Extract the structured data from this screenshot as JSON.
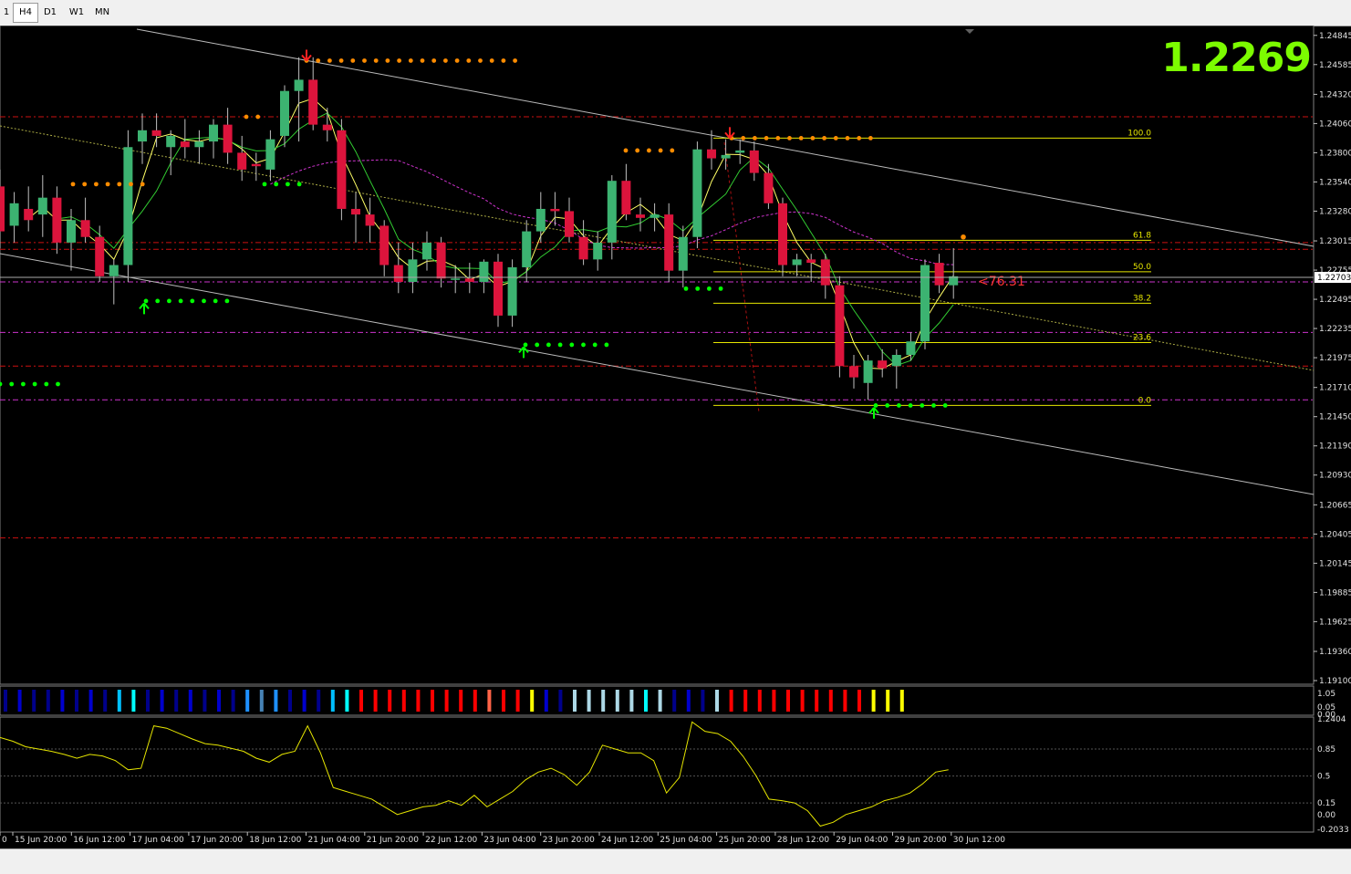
{
  "toolbar": {
    "timeframes": [
      {
        "label": "1",
        "active": false
      },
      {
        "label": "H4",
        "active": true
      },
      {
        "label": "D1",
        "active": false
      },
      {
        "label": "W1",
        "active": false
      },
      {
        "label": "MN",
        "active": false
      }
    ]
  },
  "current_price": "1.2269",
  "price_tag": "1.22703",
  "distance_label": "<76.31",
  "fib_levels": [
    "100.0",
    "61.8",
    "50.0",
    "38.2",
    "23.6",
    "0.0"
  ],
  "colors": {
    "bull": "#3cb371",
    "bear": "#dc143c",
    "ma_fast": "#ffff66",
    "ma_slow": "#32cd32",
    "ma_magenta": "#cc33cc",
    "resistance": "#ff3333",
    "fib": "#e6e600",
    "big_price": "#7cfc00"
  },
  "chart_data": [
    {
      "type": "candlestick",
      "symbol_timeframe": "H4",
      "y_axis_ticks": [
        "1.24845",
        "1.24585",
        "1.24320",
        "1.24060",
        "1.23800",
        "1.23540",
        "1.23280",
        "1.23015",
        "1.22755",
        "1.22495",
        "1.22235",
        "1.21975",
        "1.21710",
        "1.21450",
        "1.21190",
        "1.20930",
        "1.20665",
        "1.20405",
        "1.20145",
        "1.19885",
        "1.19625",
        "1.19360",
        "1.19100"
      ],
      "ylim": [
        1.191,
        1.249
      ],
      "x_axis_ticks": [
        "0",
        "15 Jun 20:00",
        "16 Jun 12:00",
        "17 Jun 04:00",
        "17 Jun 20:00",
        "18 Jun 12:00",
        "21 Jun 04:00",
        "21 Jun 20:00",
        "22 Jun 12:00",
        "23 Jun 04:00",
        "23 Jun 20:00",
        "24 Jun 12:00",
        "25 Jun 04:00",
        "25 Jun 20:00",
        "28 Jun 12:00",
        "29 Jun 04:00",
        "29 Jun 20:00",
        "30 Jun 12:00"
      ],
      "horizontal_levels": [
        {
          "price": 1.2412,
          "style": "red-dashed"
        },
        {
          "price": 1.23,
          "style": "red-dashed"
        },
        {
          "price": 1.2294,
          "style": "red-dashed"
        },
        {
          "price": 1.2265,
          "style": "magenta-dashed"
        },
        {
          "price": 1.222,
          "style": "magenta-dashed"
        },
        {
          "price": 1.219,
          "style": "red-dashed"
        },
        {
          "price": 1.216,
          "style": "magenta-dashed"
        },
        {
          "price": 1.2037,
          "style": "red-dashed"
        }
      ],
      "fibonacci": [
        {
          "level": "100.0",
          "price": 1.2393
        },
        {
          "level": "61.8",
          "price": 1.2302
        },
        {
          "level": "50.0",
          "price": 1.2274
        },
        {
          "level": "38.2",
          "price": 1.2246
        },
        {
          "level": "23.6",
          "price": 1.2211
        },
        {
          "level": "0.0",
          "price": 1.2155
        }
      ],
      "candles": [
        [
          1.235,
          1.2365,
          1.2295,
          1.231
        ],
        [
          1.2315,
          1.2345,
          1.23,
          1.2335
        ],
        [
          1.233,
          1.235,
          1.231,
          1.232
        ],
        [
          1.2325,
          1.236,
          1.2305,
          1.234
        ],
        [
          1.234,
          1.235,
          1.229,
          1.23
        ],
        [
          1.23,
          1.233,
          1.2275,
          1.232
        ],
        [
          1.232,
          1.234,
          1.23,
          1.2305
        ],
        [
          1.2305,
          1.2315,
          1.2265,
          1.227
        ],
        [
          1.227,
          1.2285,
          1.2245,
          1.228
        ],
        [
          1.228,
          1.24,
          1.2265,
          1.2385
        ],
        [
          1.239,
          1.2415,
          1.237,
          1.24
        ],
        [
          1.24,
          1.2415,
          1.2385,
          1.2395
        ],
        [
          1.2385,
          1.24,
          1.236,
          1.2395
        ],
        [
          1.239,
          1.241,
          1.2375,
          1.2385
        ],
        [
          1.2385,
          1.24,
          1.237,
          1.239
        ],
        [
          1.239,
          1.241,
          1.2375,
          1.2405
        ],
        [
          1.2405,
          1.242,
          1.237,
          1.238
        ],
        [
          1.238,
          1.2395,
          1.2355,
          1.2365
        ],
        [
          1.237,
          1.238,
          1.2355,
          1.2368
        ],
        [
          1.2365,
          1.24,
          1.2355,
          1.2392
        ],
        [
          1.2395,
          1.244,
          1.2385,
          1.2435
        ],
        [
          1.2435,
          1.2465,
          1.239,
          1.2445
        ],
        [
          1.2445,
          1.2465,
          1.24,
          1.2405
        ],
        [
          1.2405,
          1.242,
          1.239,
          1.24
        ],
        [
          1.24,
          1.241,
          1.232,
          1.233
        ],
        [
          1.233,
          1.2345,
          1.23,
          1.2325
        ],
        [
          1.2325,
          1.234,
          1.23,
          1.2315
        ],
        [
          1.2315,
          1.232,
          1.227,
          1.228
        ],
        [
          1.228,
          1.23,
          1.2255,
          1.2265
        ],
        [
          1.2265,
          1.23,
          1.2255,
          1.2285
        ],
        [
          1.2285,
          1.231,
          1.2275,
          1.23
        ],
        [
          1.23,
          1.2305,
          1.226,
          1.2268
        ],
        [
          1.2268,
          1.228,
          1.2255,
          1.2268
        ],
        [
          1.2268,
          1.2282,
          1.2255,
          1.2265
        ],
        [
          1.2265,
          1.2285,
          1.2255,
          1.2283
        ],
        [
          1.2283,
          1.229,
          1.2225,
          1.2235
        ],
        [
          1.2235,
          1.2285,
          1.2225,
          1.2278
        ],
        [
          1.2278,
          1.232,
          1.2265,
          1.231
        ],
        [
          1.231,
          1.2345,
          1.23,
          1.233
        ],
        [
          1.233,
          1.2345,
          1.2315,
          1.2328
        ],
        [
          1.2328,
          1.234,
          1.23,
          1.2305
        ],
        [
          1.2305,
          1.232,
          1.228,
          1.2285
        ],
        [
          1.2285,
          1.231,
          1.2275,
          1.23
        ],
        [
          1.23,
          1.236,
          1.2285,
          1.2355
        ],
        [
          1.2355,
          1.237,
          1.232,
          1.2325
        ],
        [
          1.2325,
          1.234,
          1.231,
          1.2322
        ],
        [
          1.2322,
          1.2335,
          1.231,
          1.2325
        ],
        [
          1.2325,
          1.2335,
          1.2265,
          1.2275
        ],
        [
          1.2275,
          1.2315,
          1.226,
          1.2305
        ],
        [
          1.2305,
          1.239,
          1.2295,
          1.2383
        ],
        [
          1.2383,
          1.24,
          1.2365,
          1.2375
        ],
        [
          1.2375,
          1.2392,
          1.2365,
          1.2378
        ],
        [
          1.238,
          1.2392,
          1.237,
          1.2382
        ],
        [
          1.2382,
          1.239,
          1.2355,
          1.2362
        ],
        [
          1.2362,
          1.237,
          1.233,
          1.2335
        ],
        [
          1.2335,
          1.234,
          1.227,
          1.228
        ],
        [
          1.228,
          1.229,
          1.227,
          1.2285
        ],
        [
          1.2285,
          1.229,
          1.2265,
          1.2282
        ],
        [
          1.2285,
          1.229,
          1.225,
          1.2262
        ],
        [
          1.2262,
          1.227,
          1.218,
          1.219
        ],
        [
          1.219,
          1.22,
          1.217,
          1.218
        ],
        [
          1.2175,
          1.22,
          1.216,
          1.2195
        ],
        [
          1.2195,
          1.2205,
          1.218,
          1.2188
        ],
        [
          1.219,
          1.2205,
          1.217,
          1.22
        ],
        [
          1.22,
          1.222,
          1.2195,
          1.2212
        ],
        [
          1.2212,
          1.2285,
          1.2205,
          1.228
        ],
        [
          1.2282,
          1.229,
          1.2255,
          1.2262
        ],
        [
          1.2262,
          1.2295,
          1.225,
          1.227
        ]
      ],
      "current_price": 1.2269
    },
    {
      "type": "bar",
      "name": "color-bar indicator",
      "y_axis_ticks": [
        "1.05",
        "0.05",
        "0.00"
      ],
      "bar_colors": [
        "#00008b",
        "#0000cd",
        "#00008b",
        "#00008b",
        "#0000cd",
        "#00008b",
        "#0000cd",
        "#00008b",
        "#00bfff",
        "#00ffff",
        "#00008b",
        "#0000cd",
        "#00008b",
        "#0000cd",
        "#00008b",
        "#0000cd",
        "#00008b",
        "#1e90ff",
        "#4682b4",
        "#1e90ff",
        "#00008b",
        "#0000cd",
        "#00008b",
        "#00bfff",
        "#00ffff",
        "#ff0000",
        "#ff0000",
        "#ff0000",
        "#ff0000",
        "#ff0000",
        "#ff0000",
        "#ff0000",
        "#ff0000",
        "#ff0000",
        "#ff6347",
        "#ff0000",
        "#ff0000",
        "#ffff00",
        "#0000cd",
        "#00008b",
        "#add8e6",
        "#add8e6",
        "#add8e6",
        "#add8e6",
        "#add8e6",
        "#00ffff",
        "#add8e6",
        "#00008b",
        "#0000cd",
        "#00008b",
        "#add8e6",
        "#ff0000",
        "#ff0000",
        "#ff0000",
        "#ff0000",
        "#ff0000",
        "#ff0000",
        "#ff0000",
        "#ff0000",
        "#ff0000",
        "#ff0000",
        "#ffff00",
        "#ffff00",
        "#ffff00"
      ]
    },
    {
      "type": "line",
      "name": "oscillator",
      "y_axis_ticks": [
        "1.2404",
        "0.85",
        "0.5",
        "0.15",
        "0.00",
        "-0.2033"
      ],
      "ylim": [
        -0.2033,
        1.2404
      ],
      "values": [
        1.0,
        0.95,
        0.88,
        0.85,
        0.82,
        0.78,
        0.73,
        0.78,
        0.76,
        0.7,
        0.58,
        0.6,
        1.15,
        1.12,
        1.05,
        0.98,
        0.92,
        0.9,
        0.86,
        0.82,
        0.73,
        0.68,
        0.78,
        0.82,
        1.15,
        0.8,
        0.35,
        0.3,
        0.25,
        0.2,
        0.1,
        0.0,
        0.05,
        0.1,
        0.12,
        0.18,
        0.12,
        0.25,
        0.1,
        0.2,
        0.3,
        0.45,
        0.55,
        0.6,
        0.52,
        0.38,
        0.55,
        0.9,
        0.85,
        0.8,
        0.8,
        0.7,
        0.28,
        0.48,
        1.2,
        1.08,
        1.05,
        0.95,
        0.75,
        0.5,
        0.2,
        0.18,
        0.15,
        0.05,
        -0.15,
        -0.1,
        0.0,
        0.05,
        0.1,
        0.18,
        0.22,
        0.28,
        0.4,
        0.55,
        0.58
      ]
    }
  ]
}
